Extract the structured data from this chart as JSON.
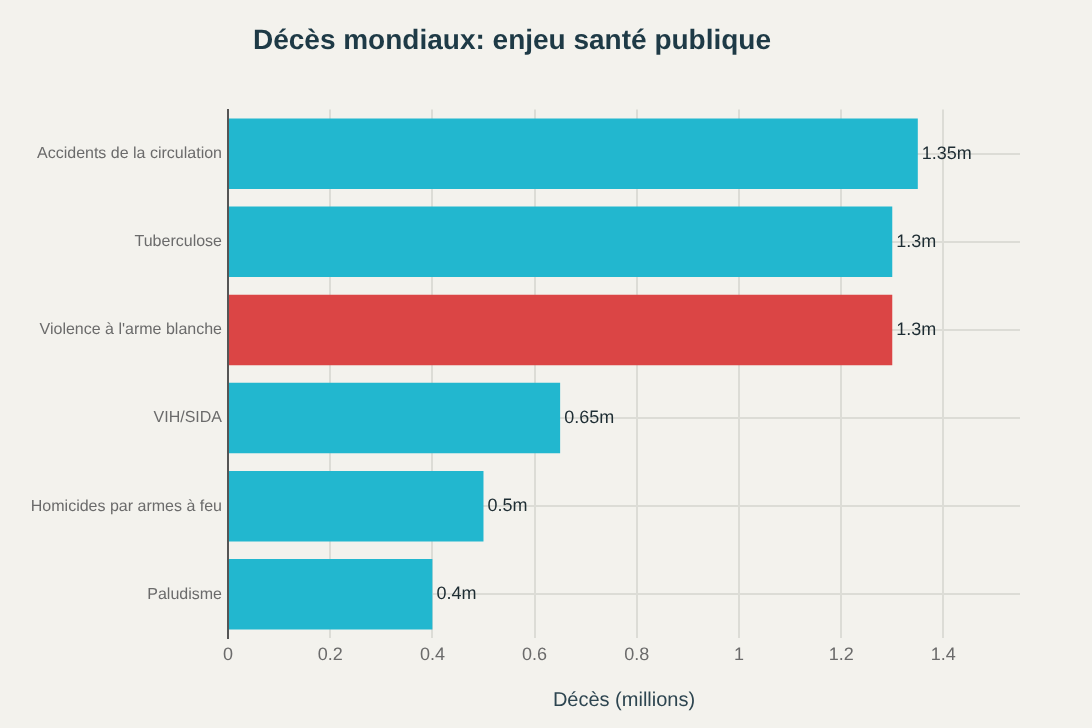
{
  "chart_data": {
    "type": "bar",
    "orientation": "horizontal",
    "title": "Décès mondiaux: enjeu santé publique",
    "xlabel": "Décès (millions)",
    "categories": [
      "Accidents de la circulation",
      "Tuberculose",
      "Violence à l'arme blanche",
      "VIH/SIDA",
      "Homicides par armes à feu",
      "Paludisme"
    ],
    "values": [
      1.35,
      1.3,
      1.3,
      0.65,
      0.5,
      0.4
    ],
    "colors": [
      "#22b7cf",
      "#22b7cf",
      "#db4545",
      "#22b7cf",
      "#22b7cf",
      "#22b7cf"
    ],
    "value_labels": [
      "1.35m",
      "1.3m",
      "1.3m",
      "0.65m",
      "0.5m",
      "0.4m"
    ],
    "xlim": [
      0,
      1.55
    ],
    "xticks": [
      0,
      0.2,
      0.4,
      0.6,
      0.8,
      1,
      1.2,
      1.4
    ],
    "grid": true
  }
}
